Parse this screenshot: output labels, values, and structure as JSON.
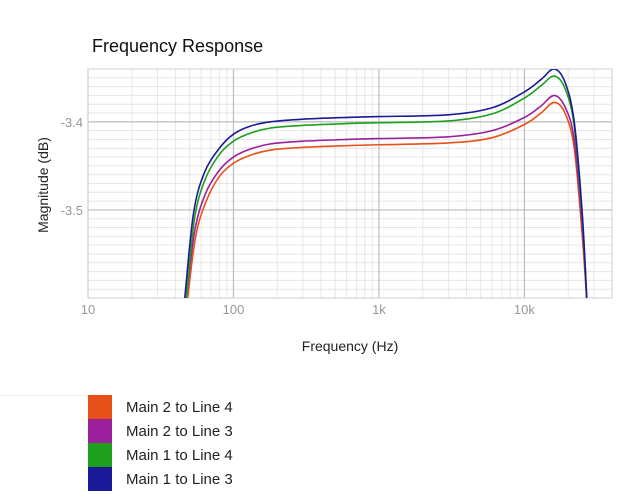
{
  "chart_data": {
    "type": "line",
    "title": "Frequency Response",
    "xlabel": "Frequency (Hz)",
    "ylabel": "Magnitude (dB)",
    "x_scale": "log",
    "xlim": [
      10,
      40000
    ],
    "ylim": [
      -3.6,
      -3.34
    ],
    "xticks": [
      {
        "value": 10,
        "label": "10"
      },
      {
        "value": 100,
        "label": "100"
      },
      {
        "value": 1000,
        "label": "1k"
      },
      {
        "value": 10000,
        "label": "10k"
      }
    ],
    "yticks": [
      {
        "value": -3.4,
        "label": "-3.4"
      },
      {
        "value": -3.5,
        "label": "-3.5"
      }
    ],
    "grid": true,
    "legend_position": "bottom-left",
    "series": [
      {
        "name": "Main 2 to Line 4",
        "color": "#e8501a",
        "x": [
          48,
          55,
          65,
          80,
          100,
          130,
          180,
          300,
          600,
          1000,
          3000,
          6000,
          10000,
          13000,
          16000,
          19000,
          22000,
          25000,
          27000
        ],
        "y": [
          -3.605,
          -3.53,
          -3.49,
          -3.462,
          -3.447,
          -3.438,
          -3.432,
          -3.429,
          -3.427,
          -3.426,
          -3.424,
          -3.418,
          -3.403,
          -3.39,
          -3.378,
          -3.39,
          -3.43,
          -3.53,
          -3.61
        ]
      },
      {
        "name": "Main 2 to Line 3",
        "color": "#9c1f9c",
        "x": [
          47,
          54,
          64,
          80,
          100,
          130,
          180,
          300,
          600,
          1000,
          3000,
          6000,
          10000,
          13000,
          16000,
          19000,
          22000,
          25000,
          27000
        ],
        "y": [
          -3.605,
          -3.525,
          -3.482,
          -3.455,
          -3.44,
          -3.431,
          -3.425,
          -3.422,
          -3.42,
          -3.419,
          -3.417,
          -3.41,
          -3.395,
          -3.382,
          -3.37,
          -3.383,
          -3.42,
          -3.52,
          -3.61
        ]
      },
      {
        "name": "Main 1 to Line 4",
        "color": "#1e9f1e",
        "x": [
          47,
          54,
          64,
          80,
          100,
          130,
          180,
          300,
          600,
          1000,
          3000,
          6000,
          10000,
          13000,
          16000,
          19000,
          22000,
          25000,
          27000
        ],
        "y": [
          -3.605,
          -3.51,
          -3.465,
          -3.437,
          -3.422,
          -3.413,
          -3.407,
          -3.404,
          -3.402,
          -3.401,
          -3.399,
          -3.391,
          -3.373,
          -3.359,
          -3.348,
          -3.362,
          -3.405,
          -3.51,
          -3.61
        ]
      },
      {
        "name": "Main 1 to Line 3",
        "color": "#1a1a99",
        "x": [
          46,
          53,
          63,
          80,
          100,
          130,
          180,
          300,
          600,
          1000,
          3000,
          6000,
          10000,
          13000,
          16000,
          19000,
          22000,
          25000,
          27000
        ],
        "y": [
          -3.605,
          -3.505,
          -3.458,
          -3.43,
          -3.414,
          -3.405,
          -3.4,
          -3.397,
          -3.395,
          -3.394,
          -3.392,
          -3.384,
          -3.366,
          -3.352,
          -3.34,
          -3.355,
          -3.4,
          -3.505,
          -3.61
        ]
      }
    ]
  },
  "legend": {
    "items": [
      {
        "label": "Main 2 to Line 4",
        "color": "#e8501a"
      },
      {
        "label": "Main 2 to Line 3",
        "color": "#9c1f9c"
      },
      {
        "label": "Main 1 to Line 4",
        "color": "#1e9f1e"
      },
      {
        "label": "Main 1 to Line 3",
        "color": "#1a1a99"
      }
    ]
  }
}
